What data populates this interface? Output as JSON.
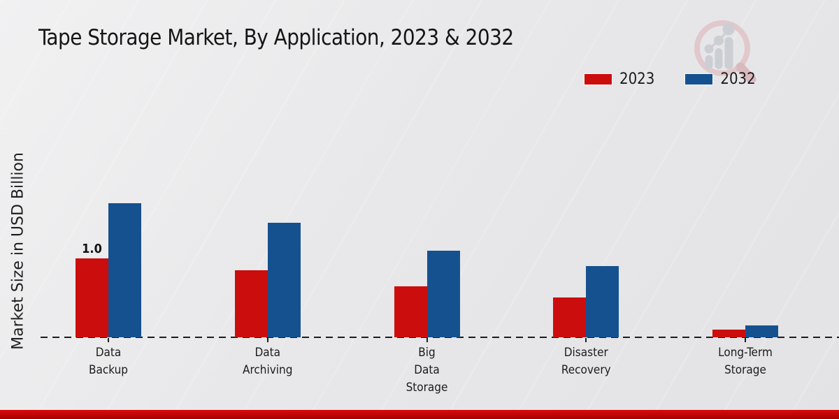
{
  "header": {
    "title": "Tape Storage Market, By Application, 2023 & 2032"
  },
  "branding": {
    "logo_icon": "magnifier-bar-chart-watermark"
  },
  "footer": {
    "accent_color": "#c40606"
  },
  "chart_data": {
    "type": "bar",
    "title": "Tape Storage Market, By Application, 2023 & 2032",
    "xlabel": "",
    "ylabel": "Market Size in USD Billion",
    "categories": [
      "Data Backup",
      "Data Archiving",
      "Big Data Storage",
      "Disaster Recovery",
      "Long-Term Storage"
    ],
    "category_lines": [
      [
        "Data",
        "Backup"
      ],
      [
        "Data",
        "Archiving"
      ],
      [
        "Big",
        "Data",
        "Storage"
      ],
      [
        "Disaster",
        "Recovery"
      ],
      [
        "Long-Term",
        "Storage"
      ]
    ],
    "series": [
      {
        "name": "2023",
        "color": "#cc0d0d",
        "values": [
          1.0,
          0.85,
          0.65,
          0.5,
          0.1
        ]
      },
      {
        "name": "2032",
        "color": "#15518f",
        "values": [
          1.7,
          1.45,
          1.1,
          0.9,
          0.15
        ]
      }
    ],
    "bar_labels": [
      {
        "series_index": 0,
        "category_index": 0,
        "text": "1.0"
      }
    ],
    "ylim": [
      0,
      2.0
    ],
    "grid": false,
    "legend_position": "top-right",
    "baseline_style": "dashed-black"
  }
}
